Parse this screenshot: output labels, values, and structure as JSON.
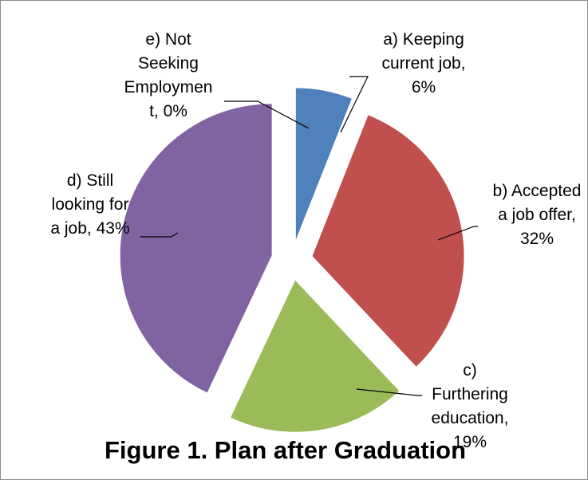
{
  "caption": "Figure 1. Plan after Graduation",
  "chart_data": {
    "type": "pie",
    "start_angle_deg": 0,
    "direction": "clockwise",
    "exploded": true,
    "slices": [
      {
        "label": "a) Keeping current job, 6%",
        "value": 6,
        "color": "#4f81bd",
        "label_lines": [
          "a) Keeping",
          "current job,",
          "6%"
        ]
      },
      {
        "label": "b) Accepted a job offer, 32%",
        "value": 32,
        "color": "#c0504d",
        "label_lines": [
          "b) Accepted",
          "a job offer,",
          "32%"
        ]
      },
      {
        "label": "c) Furthering education, 19%",
        "value": 19,
        "color": "#9bbb59",
        "label_lines": [
          "c)",
          "Furthering",
          "education,",
          "19%"
        ]
      },
      {
        "label": "d) Still looking for a job, 43%",
        "value": 43,
        "color": "#8064a2",
        "label_lines": [
          "d) Still",
          "looking for",
          "a job, 43%"
        ]
      },
      {
        "label": "e) Not Seeking Employment, 0%",
        "value": 0,
        "color": "#f79646",
        "label_lines": [
          "e) Not",
          "Seeking",
          "Employmen",
          "t, 0%"
        ]
      }
    ]
  }
}
